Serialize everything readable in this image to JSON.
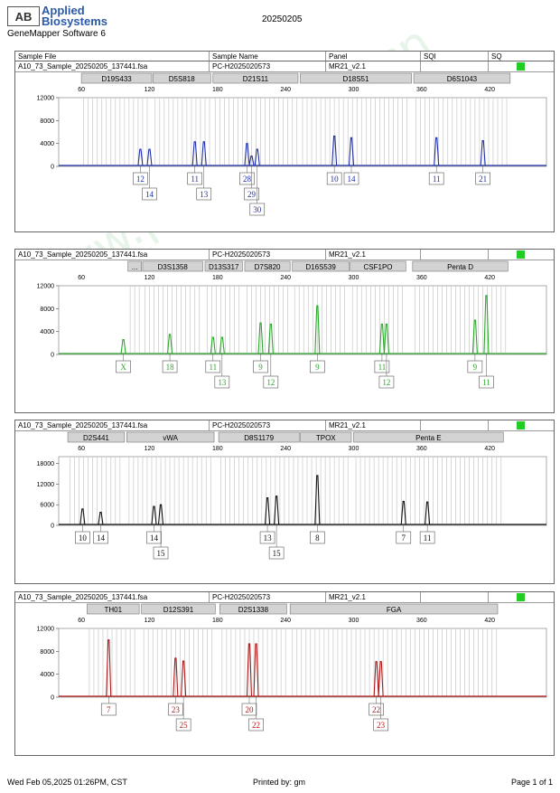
{
  "header": {
    "logo_mark": "AB",
    "brand_line1": "Applied",
    "brand_line2": "Biosystems",
    "software": "GeneMapper Software 6",
    "title": "20250205"
  },
  "table_header": {
    "sample_file": "Sample File",
    "sample_name": "Sample Name",
    "panel": "Panel",
    "sqi": "SQI",
    "sq": "SQ"
  },
  "watermark": "www.procell.com.cn",
  "colors": {
    "blue": "#1f2fa8",
    "green": "#2ba82b",
    "black": "#111111",
    "red": "#b01818",
    "bin": "#c8c8c8",
    "status": "#22cc22"
  },
  "footer": {
    "printed_on": "Wed Feb 05,2025 01:26PM, CST",
    "printed_by": "Printed by: gm",
    "page": "Page 1 of 1"
  },
  "chart_data": [
    {
      "type": "line",
      "dye": "blue",
      "sample_file": "A10_73_Sample_20250205_137441.fsa",
      "sample_name": "PC-H2025020573",
      "panel": "MR21_v2.1",
      "xlim": [
        40,
        470
      ],
      "xticks": [
        60,
        120,
        180,
        240,
        300,
        360,
        420
      ],
      "ylim": [
        0,
        12000
      ],
      "yticks": [
        0,
        4000,
        8000,
        12000
      ],
      "markers": [
        {
          "name": "D19S433",
          "start": 60,
          "end": 122
        },
        {
          "name": "D5S818",
          "start": 123,
          "end": 174
        },
        {
          "name": "D21S11",
          "start": 176,
          "end": 251
        },
        {
          "name": "D18S51",
          "start": 253,
          "end": 351
        },
        {
          "name": "D6S1043",
          "start": 353,
          "end": 438
        }
      ],
      "peaks": [
        {
          "x": 112,
          "y": 3000,
          "allele": "12"
        },
        {
          "x": 120,
          "y": 3000,
          "allele": "14"
        },
        {
          "x": 160,
          "y": 4300,
          "allele": "11"
        },
        {
          "x": 168,
          "y": 4300,
          "allele": "13"
        },
        {
          "x": 206,
          "y": 4000,
          "allele": "28"
        },
        {
          "x": 210,
          "y": 1800,
          "allele": "29"
        },
        {
          "x": 215,
          "y": 3000,
          "allele": "30"
        },
        {
          "x": 283,
          "y": 5300,
          "allele": "10"
        },
        {
          "x": 298,
          "y": 5000,
          "allele": "14"
        },
        {
          "x": 373,
          "y": 5000,
          "allele": "11"
        },
        {
          "x": 414,
          "y": 4500,
          "allele": "21"
        }
      ]
    },
    {
      "type": "line",
      "dye": "green",
      "sample_file": "A10_73_Sample_20250205_137441.fsa",
      "sample_name": "PC-H2025020573",
      "panel": "MR21_v2.1",
      "xlim": [
        40,
        470
      ],
      "xticks": [
        60,
        120,
        180,
        240,
        300,
        360,
        420
      ],
      "ylim": [
        0,
        12000
      ],
      "yticks": [
        0,
        4000,
        8000,
        12000
      ],
      "markers": [
        {
          "name": "...",
          "start": 101,
          "end": 113
        },
        {
          "name": "D3S1358",
          "start": 114,
          "end": 167
        },
        {
          "name": "D13S317",
          "start": 169,
          "end": 202
        },
        {
          "name": "D7S820",
          "start": 204,
          "end": 244
        },
        {
          "name": "D16S539",
          "start": 246,
          "end": 296
        },
        {
          "name": "CSF1PO",
          "start": 297,
          "end": 346
        },
        {
          "name": "Penta D",
          "start": 352,
          "end": 436
        }
      ],
      "peaks": [
        {
          "x": 97,
          "y": 2600,
          "allele": "X"
        },
        {
          "x": 138,
          "y": 3500,
          "allele": "18"
        },
        {
          "x": 176,
          "y": 3000,
          "allele": "11"
        },
        {
          "x": 184,
          "y": 3000,
          "allele": "13"
        },
        {
          "x": 218,
          "y": 5500,
          "allele": "9"
        },
        {
          "x": 227,
          "y": 5300,
          "allele": "12"
        },
        {
          "x": 268,
          "y": 8500,
          "allele": "9"
        },
        {
          "x": 325,
          "y": 5300,
          "allele": "11"
        },
        {
          "x": 329,
          "y": 5300,
          "allele": "12"
        },
        {
          "x": 407,
          "y": 6000,
          "allele": "9"
        },
        {
          "x": 417,
          "y": 10300,
          "allele": "11"
        }
      ]
    },
    {
      "type": "line",
      "dye": "black",
      "sample_file": "A10_73_Sample_20250205_137441.fsa",
      "sample_name": "PC-H2025020573",
      "panel": "MR21_v2.1",
      "xlim": [
        40,
        470
      ],
      "xticks": [
        60,
        120,
        180,
        240,
        300,
        360,
        420
      ],
      "ylim": [
        0,
        20000
      ],
      "yticks": [
        0,
        6000,
        12000,
        18000
      ],
      "markers": [
        {
          "name": "D2S441",
          "start": 48,
          "end": 98
        },
        {
          "name": "vWA",
          "start": 100,
          "end": 177
        },
        {
          "name": "D8S1179",
          "start": 181,
          "end": 252
        },
        {
          "name": "TPOX",
          "start": 253,
          "end": 298
        },
        {
          "name": "Penta E",
          "start": 300,
          "end": 432
        }
      ],
      "peaks": [
        {
          "x": 61,
          "y": 4800,
          "allele": "10"
        },
        {
          "x": 77,
          "y": 3800,
          "allele": "14"
        },
        {
          "x": 124,
          "y": 5500,
          "allele": "14"
        },
        {
          "x": 130,
          "y": 6000,
          "allele": "15"
        },
        {
          "x": 224,
          "y": 8000,
          "allele": "13"
        },
        {
          "x": 232,
          "y": 8500,
          "allele": "15"
        },
        {
          "x": 268,
          "y": 14500,
          "allele": "8"
        },
        {
          "x": 344,
          "y": 7000,
          "allele": "7"
        },
        {
          "x": 365,
          "y": 6800,
          "allele": "11"
        }
      ]
    },
    {
      "type": "line",
      "dye": "red",
      "sample_file": "A10_73_Sample_20250205_137441.fsa",
      "sample_name": "PC-H2025020573",
      "panel": "MR21_v2.1",
      "xlim": [
        40,
        470
      ],
      "xticks": [
        60,
        120,
        180,
        240,
        300,
        360,
        420
      ],
      "ylim": [
        0,
        12000
      ],
      "yticks": [
        0,
        4000,
        8000,
        12000
      ],
      "markers": [
        {
          "name": "TH01",
          "start": 65,
          "end": 111
        },
        {
          "name": "D12S391",
          "start": 113,
          "end": 178
        },
        {
          "name": "D2S1338",
          "start": 182,
          "end": 241
        },
        {
          "name": "FGA",
          "start": 244,
          "end": 427
        }
      ],
      "peaks": [
        {
          "x": 84,
          "y": 10000,
          "allele": "7"
        },
        {
          "x": 143,
          "y": 6800,
          "allele": "23"
        },
        {
          "x": 150,
          "y": 6300,
          "allele": "25"
        },
        {
          "x": 208,
          "y": 9300,
          "allele": "20"
        },
        {
          "x": 214,
          "y": 9300,
          "allele": "22"
        },
        {
          "x": 320,
          "y": 6200,
          "allele": "22"
        },
        {
          "x": 324,
          "y": 6200,
          "allele": "23"
        }
      ]
    }
  ]
}
